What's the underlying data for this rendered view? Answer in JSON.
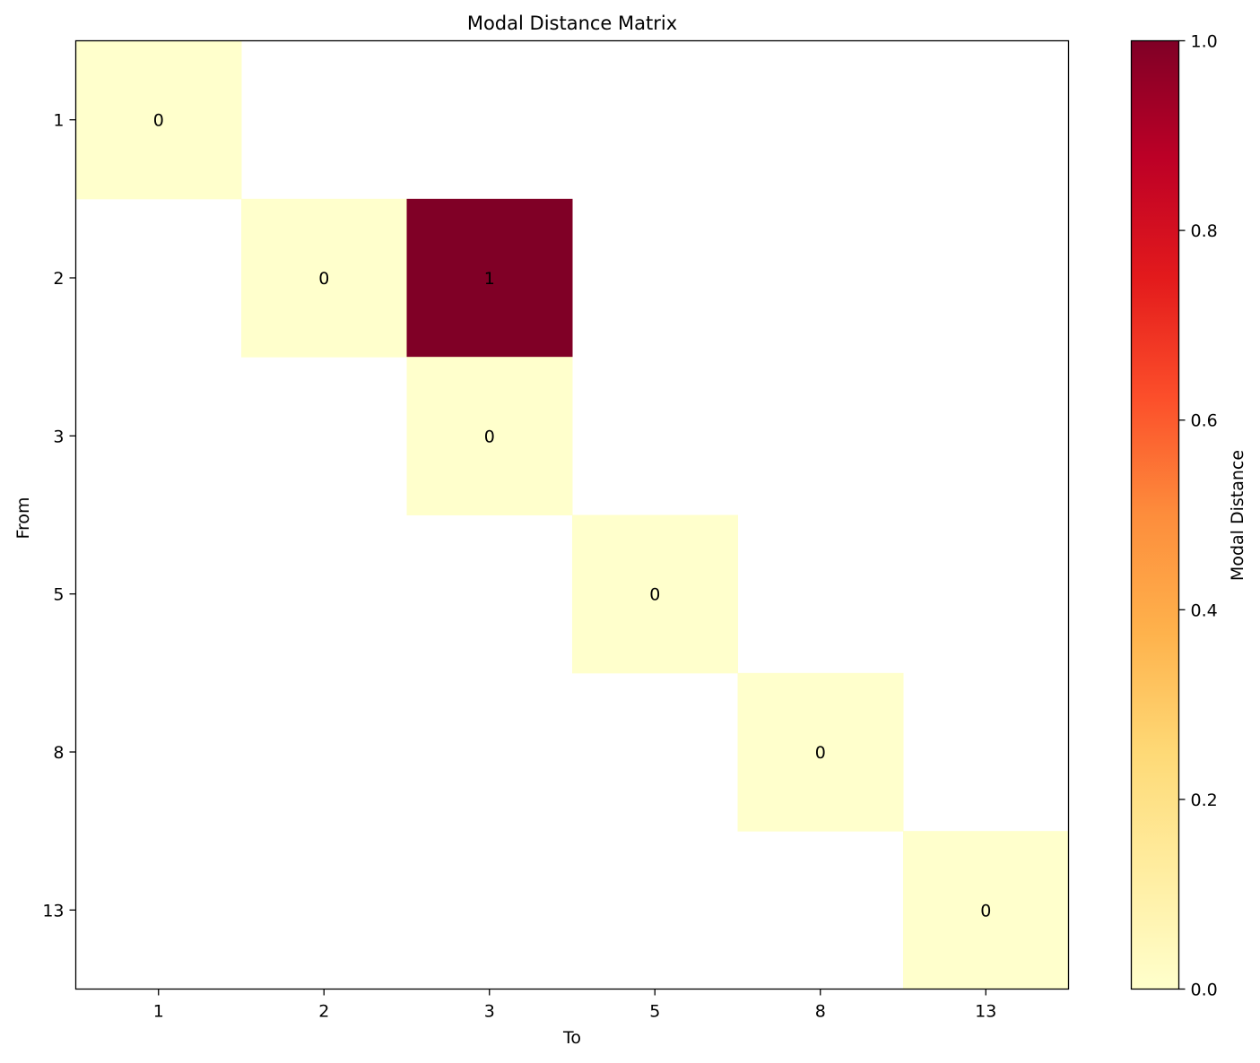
{
  "chart_data": {
    "type": "heatmap",
    "title": "Modal Distance Matrix",
    "xlabel": "To",
    "ylabel": "From",
    "x_categories": [
      "1",
      "2",
      "3",
      "5",
      "8",
      "13"
    ],
    "y_categories": [
      "1",
      "2",
      "3",
      "5",
      "8",
      "13"
    ],
    "cells": [
      {
        "from": "1",
        "to": "1",
        "value": 0,
        "label": "0"
      },
      {
        "from": "2",
        "to": "2",
        "value": 0,
        "label": "0"
      },
      {
        "from": "2",
        "to": "3",
        "value": 1,
        "label": "1"
      },
      {
        "from": "3",
        "to": "3",
        "value": 0,
        "label": "0"
      },
      {
        "from": "5",
        "to": "5",
        "value": 0,
        "label": "0"
      },
      {
        "from": "8",
        "to": "8",
        "value": 0,
        "label": "0"
      },
      {
        "from": "13",
        "to": "13",
        "value": 0,
        "label": "0"
      }
    ],
    "empty_cells": "blank (no value)",
    "colormap": "YlOrRd",
    "colorbar": {
      "label": "Modal Distance",
      "range": [
        0,
        1
      ],
      "ticks": [
        "0.0",
        "0.2",
        "0.4",
        "0.6",
        "0.8",
        "1.0"
      ],
      "stops": [
        "#ffffcc",
        "#ffeda0",
        "#fed976",
        "#feb24c",
        "#fd8d3c",
        "#fc4e2a",
        "#e31a1c",
        "#bd0026",
        "#800026"
      ]
    },
    "grid": false
  }
}
